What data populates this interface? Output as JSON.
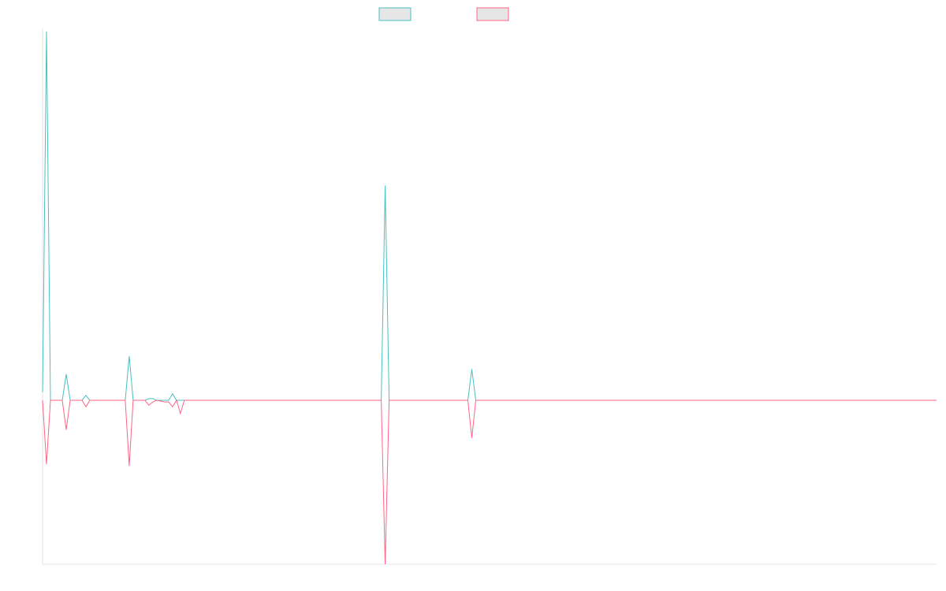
{
  "chart_data": {
    "type": "line",
    "title": "",
    "xlabel": "",
    "ylabel": "",
    "grid": false,
    "legend": {
      "placement": "top-center",
      "show_labels": false
    },
    "xlim": [
      0,
      227
    ],
    "ylim": [
      -1.0,
      1.0
    ],
    "colors": {
      "series_1": "#4bc0c0",
      "series_2": "#ff6384",
      "legend_fill": "#e6e6e6",
      "axis": "#e6e6e6"
    },
    "series": [
      {
        "color": "#4bc0c0",
        "points": [
          [
            0,
            0.05
          ],
          [
            1,
            2.25
          ],
          [
            2,
            0
          ],
          [
            5,
            0
          ],
          [
            6,
            0.16
          ],
          [
            7,
            0
          ],
          [
            10,
            0
          ],
          [
            11,
            0.03
          ],
          [
            12,
            0
          ],
          [
            21,
            0
          ],
          [
            22,
            0.27
          ],
          [
            23,
            0
          ],
          [
            26,
            0
          ],
          [
            27,
            0.01
          ],
          [
            28,
            0.01
          ],
          [
            29,
            0
          ],
          [
            32,
            0
          ],
          [
            33,
            0.04
          ],
          [
            34,
            0
          ],
          [
            86,
            0
          ],
          [
            87,
            1.31
          ],
          [
            88,
            0
          ],
          [
            108,
            0
          ],
          [
            109,
            0.19
          ],
          [
            110,
            0
          ],
          [
            227,
            0
          ]
        ]
      },
      {
        "color": "#ff6384",
        "points": [
          [
            0,
            0
          ],
          [
            1,
            -0.39
          ],
          [
            2,
            0
          ],
          [
            5,
            0
          ],
          [
            6,
            -0.18
          ],
          [
            7,
            0
          ],
          [
            10,
            0
          ],
          [
            11,
            -0.04
          ],
          [
            12,
            0
          ],
          [
            21,
            0
          ],
          [
            22,
            -0.4
          ],
          [
            23,
            0
          ],
          [
            26,
            0
          ],
          [
            27,
            -0.03
          ],
          [
            28,
            -0.01
          ],
          [
            29,
            0
          ],
          [
            31,
            -0.01
          ],
          [
            32,
            -0.01
          ],
          [
            33,
            -0.04
          ],
          [
            34,
            0
          ],
          [
            35,
            -0.08
          ],
          [
            36,
            0
          ],
          [
            86,
            0
          ],
          [
            87,
            -1.0
          ],
          [
            88,
            0
          ],
          [
            108,
            0
          ],
          [
            109,
            -0.23
          ],
          [
            110,
            0
          ],
          [
            227,
            0
          ]
        ]
      }
    ]
  }
}
